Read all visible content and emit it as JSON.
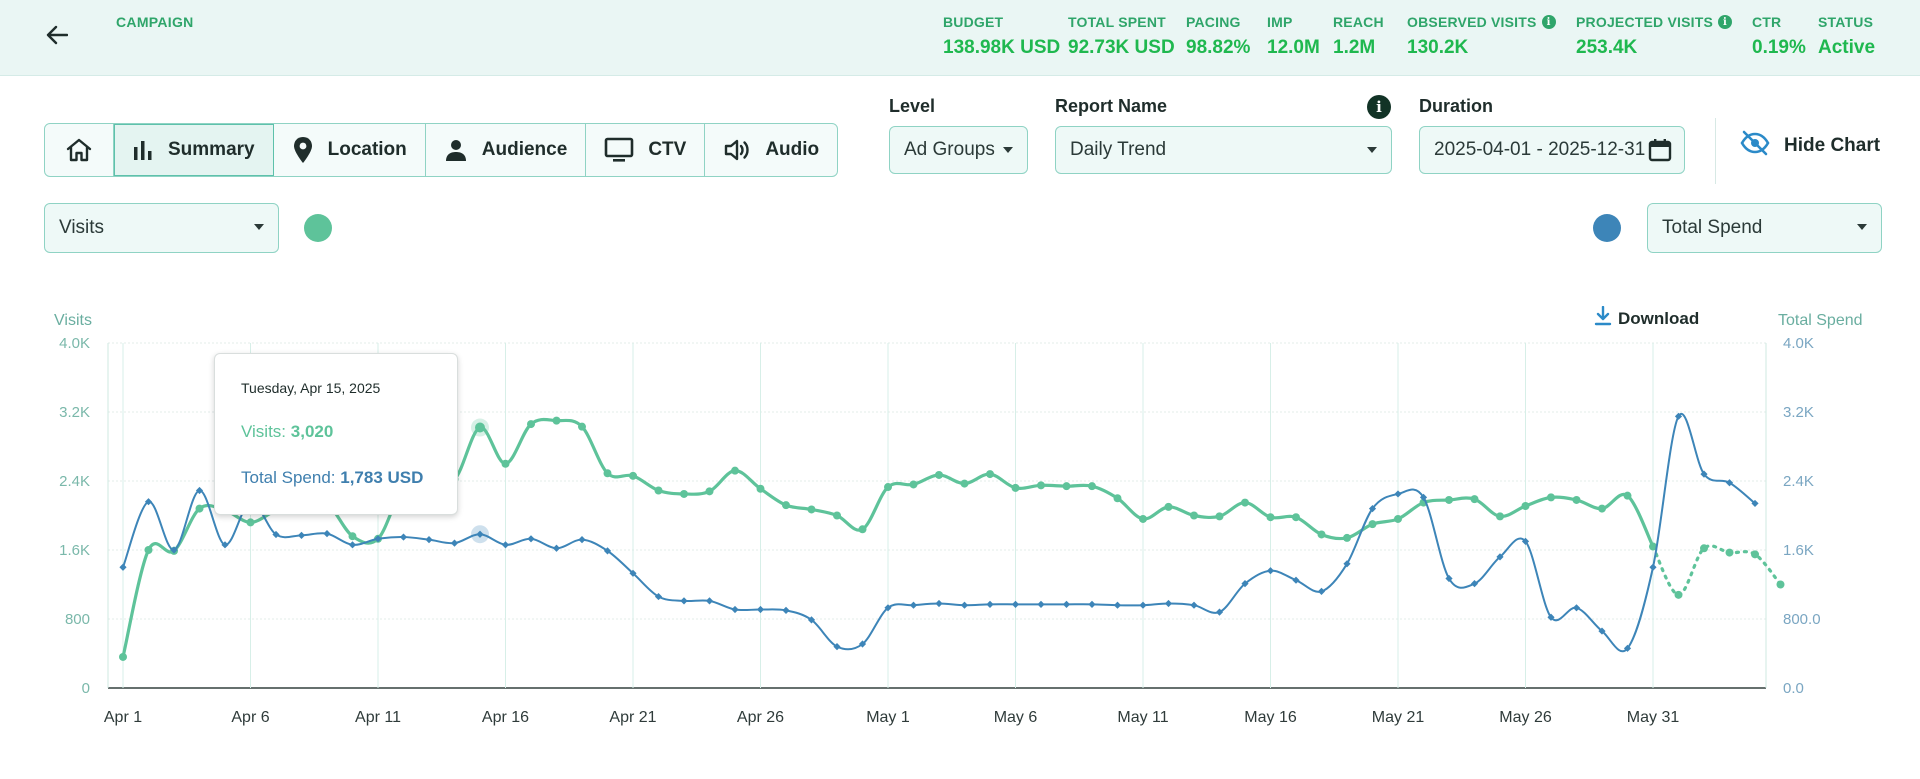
{
  "header": {
    "campaign_label": "CAMPAIGN",
    "stats": [
      {
        "label": "BUDGET",
        "value": "138.98K USD",
        "info": false
      },
      {
        "label": "TOTAL SPENT",
        "value": "92.73K USD",
        "info": false
      },
      {
        "label": "PACING",
        "value": "98.82%",
        "info": false
      },
      {
        "label": "IMP",
        "value": "12.0M",
        "info": false
      },
      {
        "label": "REACH",
        "value": "1.2M",
        "info": false
      },
      {
        "label": "OBSERVED VISITS",
        "value": "130.2K",
        "info": true
      },
      {
        "label": "PROJECTED VISITS",
        "value": "253.4K",
        "info": true
      },
      {
        "label": "CTR",
        "value": "0.19%",
        "info": false
      },
      {
        "label": "STATUS",
        "value": "Active",
        "info": false
      }
    ]
  },
  "tabs": [
    {
      "label": "",
      "icon": "home-icon"
    },
    {
      "label": "Summary",
      "icon": "bar-chart-icon"
    },
    {
      "label": "Location",
      "icon": "map-pin-icon"
    },
    {
      "label": "Audience",
      "icon": "person-icon"
    },
    {
      "label": "CTV",
      "icon": "tv-icon"
    },
    {
      "label": "Audio",
      "icon": "speaker-icon"
    }
  ],
  "filters": {
    "level_label": "Level",
    "level_value": "Ad Groups",
    "report_label": "Report Name",
    "report_value": "Daily Trend",
    "duration_label": "Duration",
    "duration_value": "2025-04-01 - 2025-12-31",
    "hide_chart_label": "Hide Chart"
  },
  "metric_selectors": {
    "left_value": "Visits",
    "left_color": "#5ec39a",
    "right_value": "Total Spend",
    "right_color": "#3d85b8"
  },
  "download_label": "Download",
  "tooltip": {
    "date": "Tuesday, Apr 15, 2025",
    "visits_label": "Visits:",
    "visits_value": "3,020",
    "spend_label": "Total Spend:",
    "spend_value": "1,783 USD"
  },
  "chart_data": {
    "type": "line",
    "x_tick_labels": [
      "Apr 1",
      "Apr 6",
      "Apr 11",
      "Apr 16",
      "Apr 21",
      "Apr 26",
      "May 1",
      "May 6",
      "May 11",
      "May 16",
      "May 21",
      "May 26",
      "May 31"
    ],
    "ylabel_left": "Visits",
    "ylabel_right": "Total Spend",
    "left_ticks": [
      "0",
      "800",
      "1.6K",
      "2.4K",
      "3.2K",
      "4.0K"
    ],
    "right_ticks": [
      "0.0",
      "800.0",
      "1.6K",
      "2.4K",
      "3.2K",
      "4.0K"
    ],
    "ylim_left": [
      0,
      4000
    ],
    "ylim_right": [
      0,
      4000
    ],
    "grid": true,
    "series": [
      {
        "name": "Visits",
        "color": "#5ec39a",
        "axis": "left",
        "values": [
          360,
          1600,
          1590,
          2080,
          2060,
          1920,
          2060,
          2150,
          2140,
          1760,
          1730,
          2340,
          2510,
          2420,
          3020,
          2600,
          3060,
          3100,
          3030,
          2490,
          2460,
          2290,
          2250,
          2280,
          2520,
          2310,
          2120,
          2070,
          2000,
          1840,
          2330,
          2360,
          2470,
          2370,
          2480,
          2320,
          2350,
          2340,
          2340,
          2200,
          1960,
          2100,
          2000,
          1990,
          2150,
          1980,
          1980,
          1780,
          1740,
          1900,
          1960,
          2150,
          2180,
          2190,
          1990,
          2110,
          2210,
          2180,
          2080,
          2230,
          1640,
          1080,
          1620,
          1570,
          1550,
          1200
        ],
        "dotted_from_index": 60
      },
      {
        "name": "Total Spend",
        "color": "#3d85b8",
        "axis": "right",
        "values": [
          1400,
          2160,
          1600,
          2290,
          1660,
          2160,
          1780,
          1770,
          1790,
          1660,
          1730,
          1750,
          1720,
          1680,
          1783,
          1660,
          1730,
          1620,
          1720,
          1590,
          1330,
          1060,
          1010,
          1010,
          910,
          910,
          900,
          790,
          480,
          510,
          930,
          960,
          980,
          960,
          970,
          970,
          970,
          970,
          970,
          960,
          960,
          980,
          960,
          880,
          1210,
          1360,
          1250,
          1120,
          1440,
          2080,
          2250,
          2210,
          1270,
          1210,
          1520,
          1700,
          820,
          930,
          660,
          460,
          1400,
          3150,
          2480,
          2380,
          2140
        ]
      }
    ]
  }
}
